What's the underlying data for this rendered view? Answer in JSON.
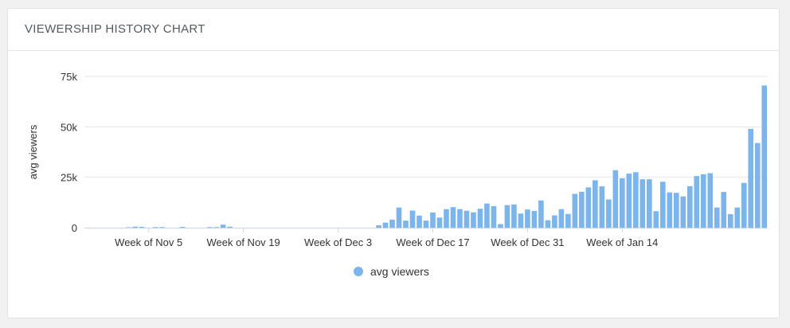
{
  "panel": {
    "title": "VIEWERSHIP HISTORY CHART"
  },
  "chart_data": {
    "type": "bar",
    "ylabel": "avg viewers",
    "xlabel": "",
    "ylim": [
      0,
      75000
    ],
    "yticks": [
      {
        "value": 0,
        "label": "0"
      },
      {
        "value": 25000,
        "label": "25k"
      },
      {
        "value": 50000,
        "label": "50k"
      },
      {
        "value": 75000,
        "label": "75k"
      }
    ],
    "xtick_labels": [
      {
        "day": 9,
        "label": "Week of Nov 5"
      },
      {
        "day": 23,
        "label": "Week of Nov 19"
      },
      {
        "day": 37,
        "label": "Week of Dec 3"
      },
      {
        "day": 51,
        "label": "Week of Dec 17"
      },
      {
        "day": 65,
        "label": "Week of Dec 31"
      },
      {
        "day": 79,
        "label": "Week of Jan 14"
      }
    ],
    "grid": true,
    "color": "#7cb5ec",
    "legend": {
      "position": "bottom-center",
      "label": "avg viewers"
    },
    "series": [
      {
        "name": "avg viewers",
        "values": [
          0,
          0,
          0,
          0,
          0,
          0,
          200,
          500,
          400,
          0,
          300,
          300,
          0,
          0,
          400,
          0,
          0,
          0,
          300,
          300,
          1500,
          500,
          0,
          0,
          0,
          0,
          0,
          0,
          0,
          0,
          0,
          0,
          0,
          0,
          0,
          0,
          0,
          0,
          0,
          0,
          0,
          0,
          0,
          1200,
          2500,
          4000,
          10000,
          3500,
          8500,
          6000,
          3500,
          7500,
          5000,
          9200,
          10200,
          9200,
          8400,
          7600,
          9400,
          12000,
          10700,
          1800,
          11200,
          11500,
          7000,
          9000,
          8300,
          13500,
          3700,
          6100,
          9200,
          6800,
          16800,
          17800,
          20000,
          23500,
          20500,
          14000,
          28500,
          24500,
          26800,
          27500,
          24000,
          24000,
          8200,
          22800,
          17500,
          17300,
          15500,
          20600,
          25600,
          26500,
          27000,
          10000,
          17700,
          6700,
          10000,
          22200,
          49000,
          42000,
          70500
        ]
      }
    ]
  }
}
